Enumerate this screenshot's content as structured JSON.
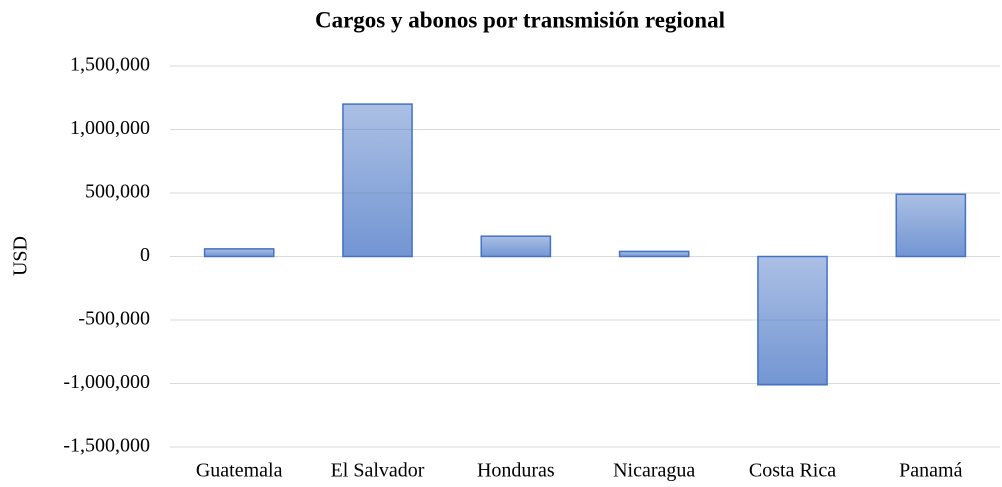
{
  "chart_data": {
    "type": "bar",
    "title": "Cargos y abonos por transmisión regional",
    "y_label": "USD",
    "categories": [
      "Guatemala",
      "El Salvador",
      "Honduras",
      "Nicaragua",
      "Costa Rica",
      "Panamá"
    ],
    "values": [
      60000,
      1200000,
      160000,
      40000,
      -1010000,
      490000
    ],
    "color": "#4472c4",
    "ylim": [
      -1500000,
      1500000
    ],
    "yticks": [
      {
        "value": -1500000,
        "label": "-1,500,000"
      },
      {
        "value": -1000000,
        "label": "-1,000,000"
      },
      {
        "value": -500000,
        "label": "-500,000"
      },
      0,
      {
        "value": 500000,
        "label": "500,000"
      },
      {
        "value": 1000000,
        "label": "1,000,000"
      },
      {
        "value": 1500000,
        "label": "1,500,000"
      }
    ],
    "grid": true
  }
}
